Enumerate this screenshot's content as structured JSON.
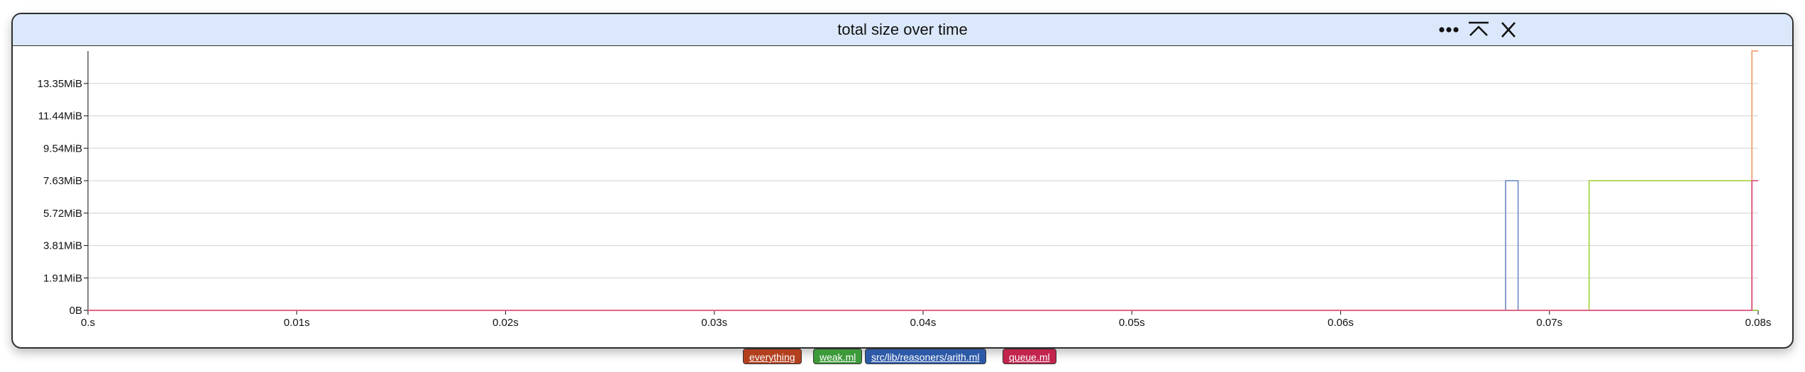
{
  "window": {
    "title": "total size over time"
  },
  "toolbar": {
    "more_icon": "more-horizontal-icon",
    "collapse_icon": "collapse-up-icon",
    "close_icon": "close-icon"
  },
  "legend": {
    "items": [
      {
        "label": "everything",
        "color": "#b2401e"
      },
      {
        "label": "weak.ml",
        "color": "#3d9a3a"
      },
      {
        "label": "src/lib/reasoners/arith.ml",
        "color": "#2d5aa8"
      },
      {
        "label": "queue.ml",
        "color": "#c2244e"
      }
    ]
  },
  "chart_data": {
    "type": "line",
    "title": "total size over time",
    "xlabel": "",
    "ylabel": "",
    "x_ticks": [
      "0.s",
      "0.01s",
      "0.02s",
      "0.03s",
      "0.04s",
      "0.05s",
      "0.06s",
      "0.07s",
      "0.08s"
    ],
    "y_ticks": [
      "0B",
      "1.91MiB",
      "3.81MiB",
      "5.72MiB",
      "7.63MiB",
      "9.54MiB",
      "11.44MiB",
      "13.35MiB"
    ],
    "xlim": [
      0,
      0.08
    ],
    "ylim_mib": [
      0,
      15.26
    ],
    "grid": true,
    "series": [
      {
        "name": "src/lib/reasoners/arith.ml",
        "color": "#7b93c8",
        "points": [
          [
            0,
            0
          ],
          [
            0.0679,
            0
          ],
          [
            0.0679,
            7.63
          ],
          [
            0.0685,
            7.63
          ],
          [
            0.0685,
            0
          ],
          [
            0.08,
            0
          ]
        ]
      },
      {
        "name": "weak.ml",
        "color": "#a8d64a",
        "points": [
          [
            0,
            0
          ],
          [
            0.0719,
            0
          ],
          [
            0.0719,
            7.63
          ],
          [
            0.0797,
            7.63
          ],
          [
            0.0797,
            0
          ],
          [
            0.08,
            0
          ]
        ]
      },
      {
        "name": "everything",
        "color": "#f0a070",
        "points": [
          [
            0,
            0
          ],
          [
            0.0797,
            0
          ],
          [
            0.0797,
            15.26
          ],
          [
            0.08,
            15.26
          ]
        ]
      },
      {
        "name": "queue.ml",
        "color": "#e05a8a",
        "points": [
          [
            0,
            0
          ],
          [
            0.0797,
            0
          ],
          [
            0.0797,
            7.63
          ],
          [
            0.08,
            7.63
          ]
        ]
      }
    ]
  }
}
